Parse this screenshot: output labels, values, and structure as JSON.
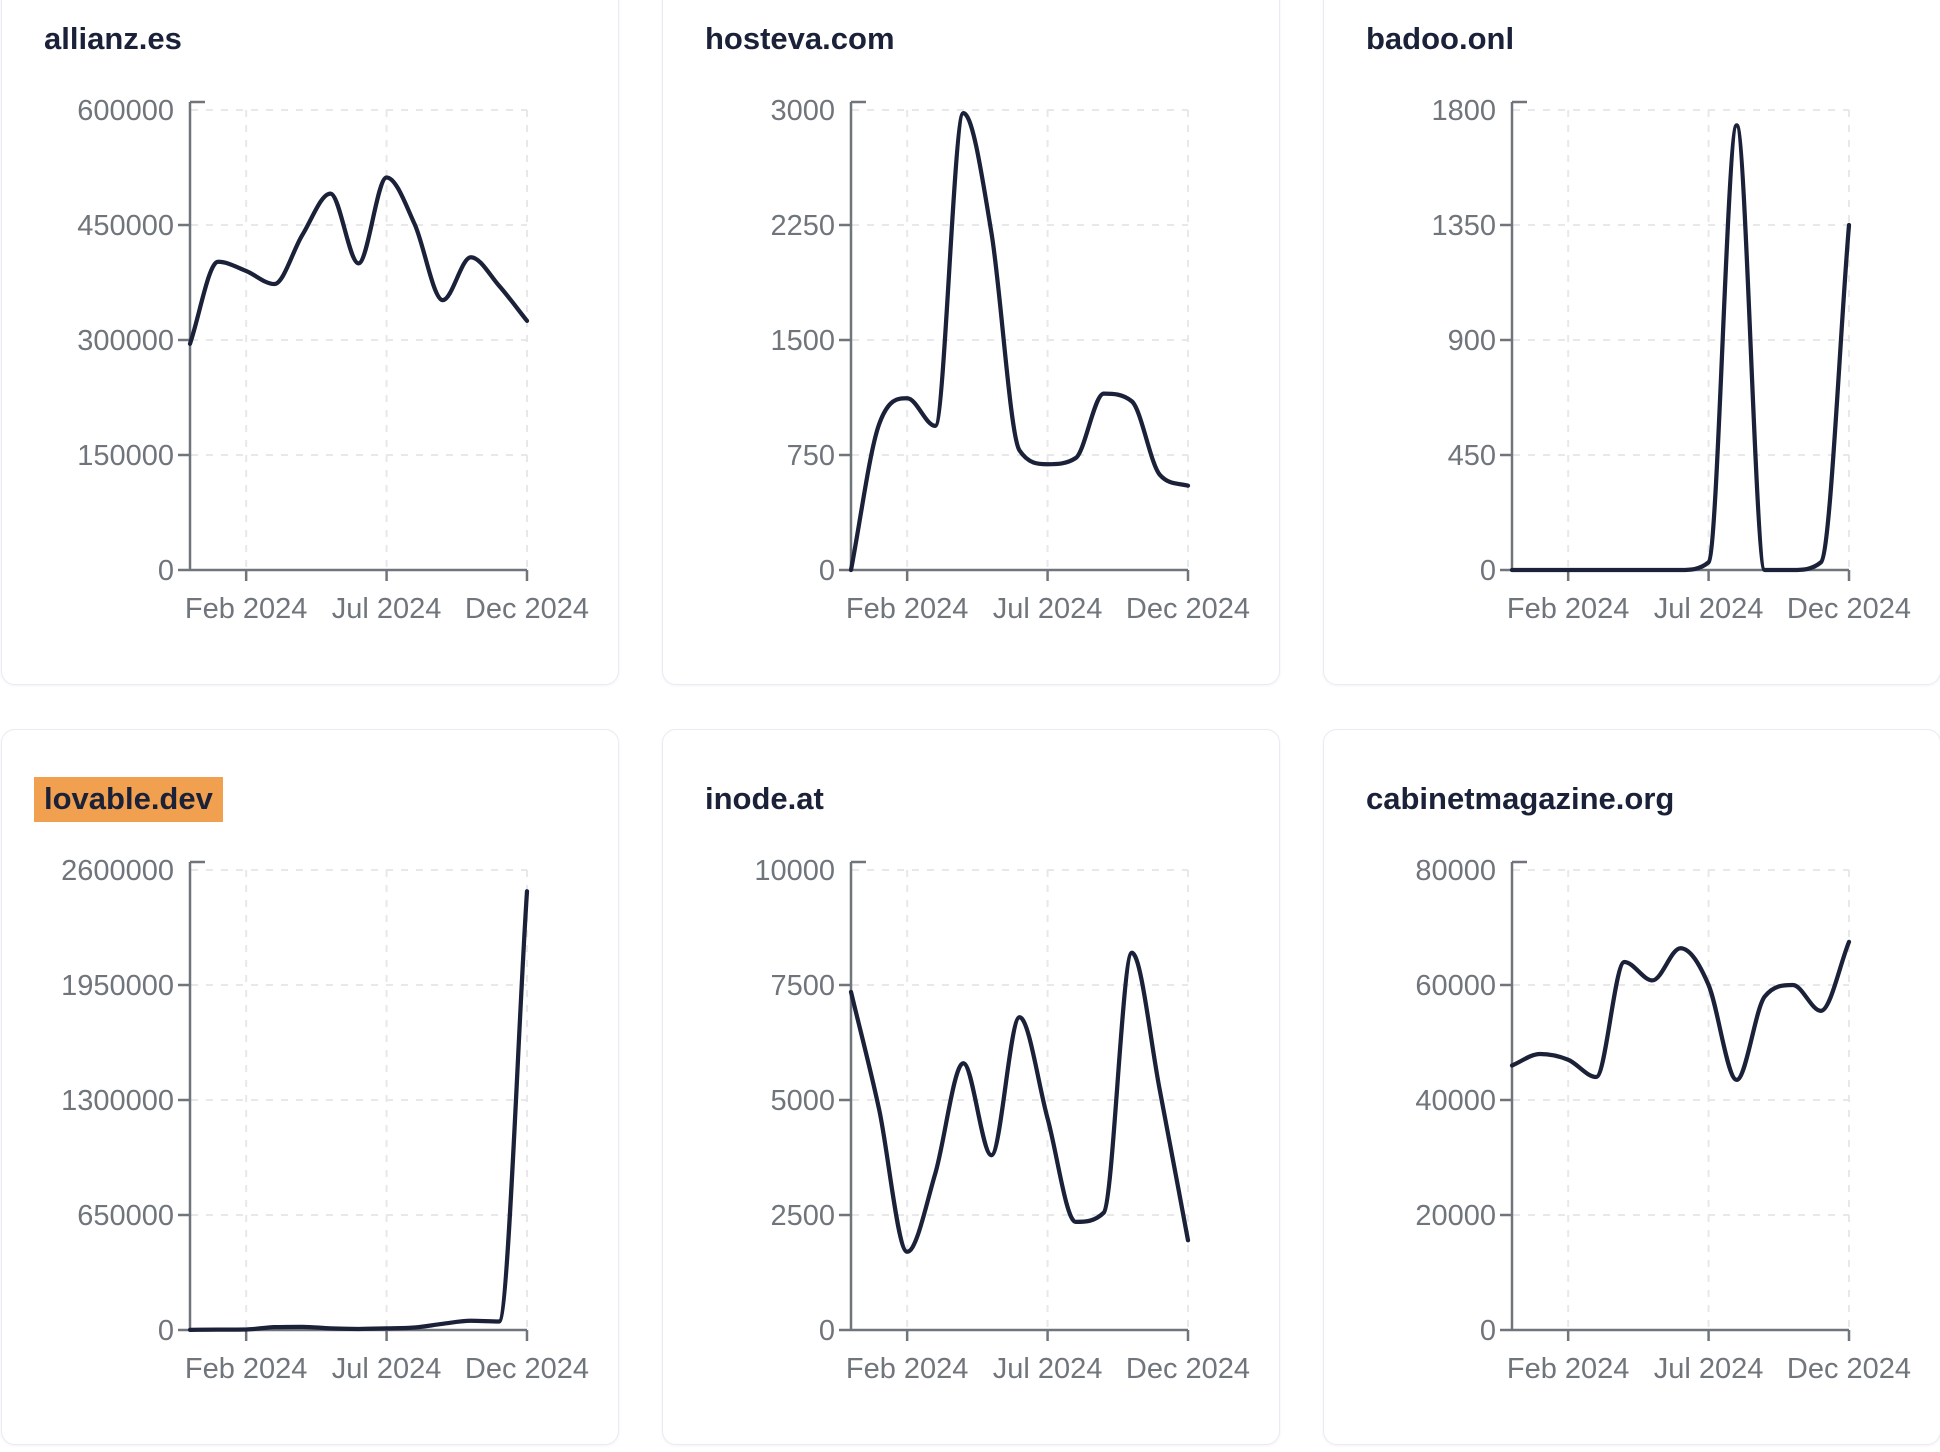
{
  "page": {
    "description": "Dashboard grid of six domain traffic line-chart cards",
    "highlighted_domain": "lovable.dev"
  },
  "colors": {
    "line": "#1a2138",
    "title": "#1a2138",
    "axis": "#70757c",
    "tick_label": "#70757c",
    "gridline": "#e8e8ea",
    "card_border": "#e8ebf2",
    "card_background": "#ffffff",
    "page_background": "#ffffff",
    "highlight_background": "#f0a04e"
  },
  "x_axis": {
    "tick_labels": [
      "Feb 2024",
      "Jul 2024",
      "Dec 2024"
    ],
    "tick_month_indices": [
      2,
      7,
      12
    ]
  },
  "timeline_months": [
    "Dec 2023",
    "Jan 2024",
    "Feb 2024",
    "Mar 2024",
    "Apr 2024",
    "May 2024",
    "Jun 2024",
    "Jul 2024",
    "Aug 2024",
    "Sep 2024",
    "Oct 2024",
    "Nov 2024",
    "Dec 2024"
  ],
  "chart_data": [
    {
      "type": "line",
      "title": "allianz.es",
      "highlighted": false,
      "ylim": [
        0,
        600000
      ],
      "yticks": [
        0,
        150000,
        300000,
        450000,
        600000
      ],
      "grid": "dashed",
      "values": [
        295000,
        402000,
        390000,
        373000,
        437000,
        491000,
        400000,
        512000,
        451000,
        352000,
        408000,
        371000,
        325000
      ]
    },
    {
      "type": "line",
      "title": "hosteva.com",
      "highlighted": false,
      "ylim": [
        0,
        3000
      ],
      "yticks": [
        0,
        750,
        1500,
        2250,
        3000
      ],
      "grid": "dashed",
      "values": [
        0,
        950,
        1120,
        940,
        2980,
        2200,
        780,
        690,
        730,
        1150,
        1100,
        620,
        550
      ]
    },
    {
      "type": "line",
      "title": "badoo.onl",
      "highlighted": false,
      "ylim": [
        0,
        1800
      ],
      "yticks": [
        0,
        450,
        900,
        1350,
        1800
      ],
      "grid": "dashed",
      "values": [
        0,
        0,
        0,
        0,
        0,
        0,
        0,
        30,
        1740,
        0,
        0,
        30,
        1350
      ]
    },
    {
      "type": "line",
      "title": "lovable.dev",
      "highlighted": true,
      "ylim": [
        0,
        2600000
      ],
      "yticks": [
        0,
        650000,
        1300000,
        1950000,
        2600000
      ],
      "grid": "dashed",
      "values": [
        1000,
        2000,
        3000,
        16000,
        18000,
        9000,
        6000,
        9000,
        14000,
        35000,
        52000,
        48000,
        2480000
      ]
    },
    {
      "type": "line",
      "title": "inode.at",
      "highlighted": false,
      "ylim": [
        0,
        10000
      ],
      "yticks": [
        0,
        2500,
        5000,
        7500,
        10000
      ],
      "grid": "dashed",
      "values": [
        7350,
        4800,
        1700,
        3400,
        5800,
        3800,
        6800,
        4600,
        2350,
        2550,
        8200,
        5200,
        1950
      ]
    },
    {
      "type": "line",
      "title": "cabinetmagazine.org",
      "highlighted": false,
      "ylim": [
        0,
        80000
      ],
      "yticks": [
        0,
        20000,
        40000,
        60000,
        80000
      ],
      "grid": "dashed",
      "values": [
        46000,
        48000,
        47000,
        44000,
        64000,
        60800,
        66400,
        60000,
        43500,
        58000,
        60000,
        55500,
        67500
      ]
    }
  ]
}
